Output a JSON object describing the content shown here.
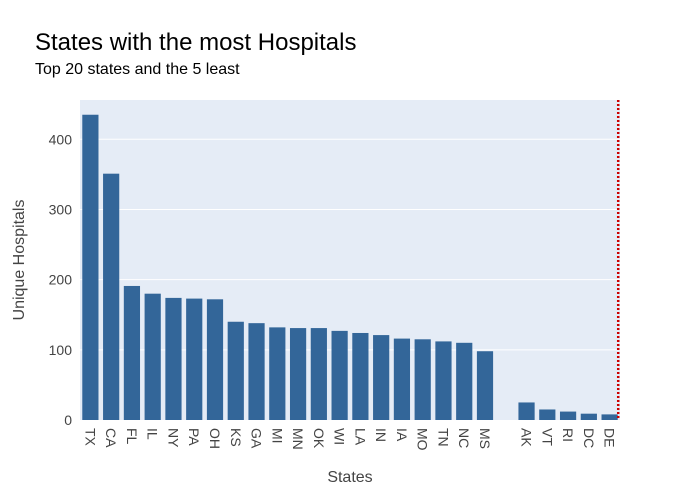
{
  "chart_data": {
    "type": "bar",
    "title": "States with the most Hospitals",
    "subtitle": "Top 20 states and the 5 least",
    "xlabel": "States",
    "ylabel": "Unique Hospitals",
    "ylim": [
      0,
      456
    ],
    "yticks": [
      0,
      100,
      200,
      300,
      400
    ],
    "grid": true,
    "categories": [
      "TX",
      "CA",
      "FL",
      "IL",
      "NY",
      "PA",
      "OH",
      "KS",
      "GA",
      "MI",
      "MN",
      "OK",
      "WI",
      "LA",
      "IN",
      "IA",
      "MO",
      "TN",
      "NC",
      "MS",
      "",
      "AK",
      "VT",
      "RI",
      "DC",
      "DE"
    ],
    "values": [
      435,
      351,
      191,
      180,
      174,
      173,
      172,
      140,
      138,
      132,
      131,
      131,
      127,
      124,
      121,
      116,
      115,
      112,
      110,
      98,
      null,
      25,
      15,
      12,
      9,
      8
    ],
    "reference_line": {
      "type": "vertical",
      "style": "dotted",
      "color": "#cc0000"
    },
    "colors": {
      "bar": "#336699",
      "plot_background": "#e5ecf6",
      "grid": "#ffffff"
    }
  }
}
